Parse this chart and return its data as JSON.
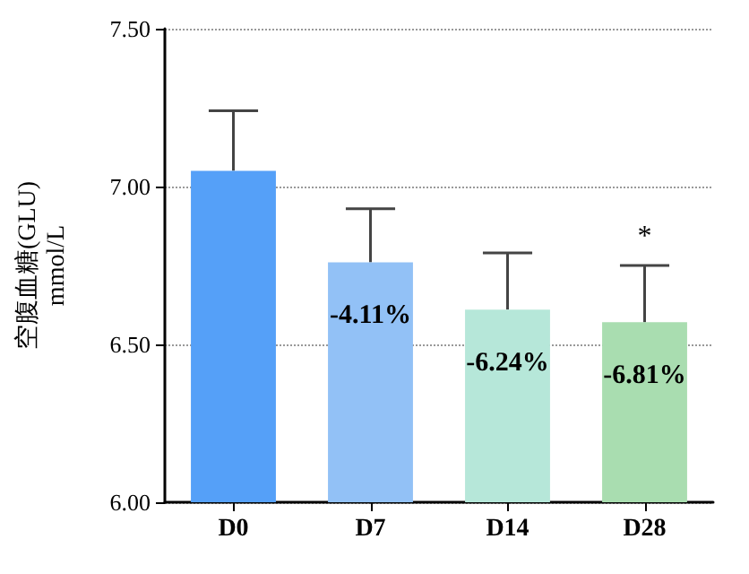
{
  "chart_data": {
    "type": "bar",
    "ylabel": "空腹血糖(GLU)\nmmol/L",
    "categories": [
      "D0",
      "D7",
      "D14",
      "D28"
    ],
    "values": [
      7.05,
      6.76,
      6.61,
      6.57
    ],
    "colors": [
      "#55a0f8",
      "#92c1f6",
      "#b6e7d9",
      "#a9ddb0"
    ],
    "errors": [
      [
        7.05,
        7.24
      ],
      [
        6.76,
        6.93
      ],
      [
        6.61,
        6.79
      ],
      [
        6.57,
        6.75
      ]
    ],
    "annotations": [
      {
        "text": "-4.11%",
        "x": "D7",
        "y": 6.76
      },
      {
        "text": "-6.24%",
        "x": "D14",
        "y": 6.61
      },
      {
        "text": "-6.81%",
        "x": "D28",
        "y": 6.57
      },
      {
        "text": "*",
        "x": "D28",
        "y": 6.75
      }
    ],
    "ylim": [
      6.0,
      7.5
    ],
    "yticks": [
      {
        "value": 6.0,
        "label": "6.00"
      },
      {
        "value": 6.5,
        "label": "6.50"
      },
      {
        "value": 7.0,
        "label": "7.00"
      },
      {
        "value": 7.5,
        "label": "7.50"
      }
    ],
    "grid": "y"
  }
}
